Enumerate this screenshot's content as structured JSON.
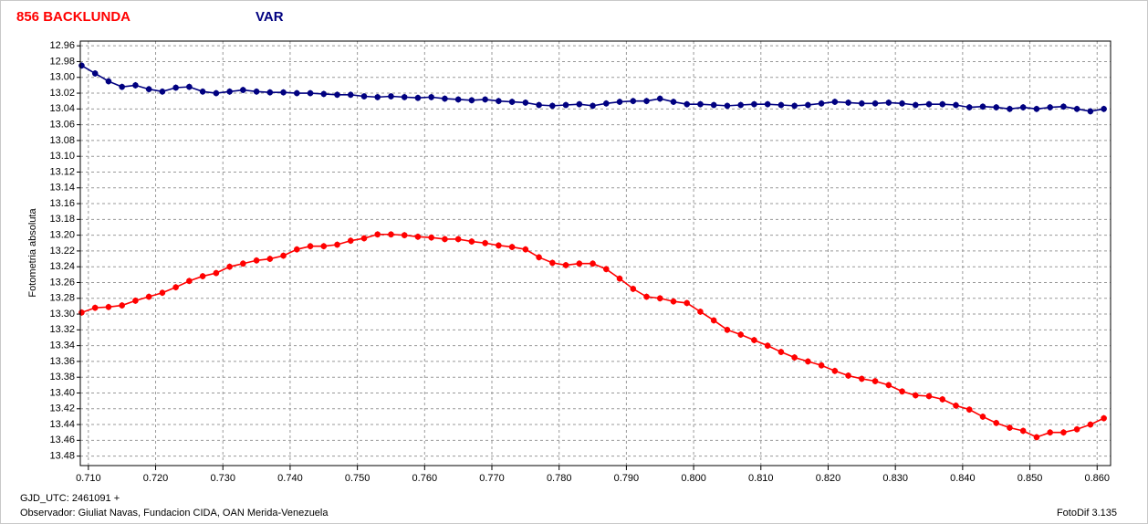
{
  "chart_data": {
    "type": "line",
    "y_label": "Fotometria absoluta",
    "footer_left": [
      "GJD_UTC: 2461091 +",
      "Observador: Giuliat Navas, Fundacion CIDA, OAN  Merida-Venezuela"
    ],
    "footer_right": "FotoDif 3.135",
    "x": [
      0.709,
      0.711,
      0.713,
      0.715,
      0.717,
      0.719,
      0.721,
      0.723,
      0.725,
      0.727,
      0.729,
      0.731,
      0.733,
      0.735,
      0.737,
      0.739,
      0.741,
      0.743,
      0.745,
      0.747,
      0.749,
      0.751,
      0.753,
      0.755,
      0.757,
      0.759,
      0.761,
      0.763,
      0.765,
      0.767,
      0.769,
      0.771,
      0.773,
      0.775,
      0.777,
      0.779,
      0.781,
      0.783,
      0.785,
      0.787,
      0.789,
      0.791,
      0.793,
      0.795,
      0.797,
      0.799,
      0.801,
      0.803,
      0.805,
      0.807,
      0.809,
      0.811,
      0.813,
      0.815,
      0.817,
      0.819,
      0.821,
      0.823,
      0.825,
      0.827,
      0.829,
      0.831,
      0.833,
      0.835,
      0.837,
      0.839,
      0.841,
      0.843,
      0.845,
      0.847,
      0.849,
      0.851,
      0.853,
      0.855,
      0.857,
      0.859,
      0.861
    ],
    "series": [
      {
        "name": "856 BACKLUNDA",
        "color": "#ff0000",
        "error": 0.004,
        "values": [
          13.298,
          13.292,
          13.291,
          13.289,
          13.283,
          13.278,
          13.273,
          13.266,
          13.258,
          13.252,
          13.248,
          13.24,
          13.236,
          13.232,
          13.23,
          13.226,
          13.218,
          13.214,
          13.214,
          13.212,
          13.207,
          13.204,
          13.199,
          13.199,
          13.2,
          13.202,
          13.203,
          13.205,
          13.205,
          13.208,
          13.21,
          13.213,
          13.215,
          13.218,
          13.228,
          13.235,
          13.238,
          13.236,
          13.236,
          13.243,
          13.255,
          13.268,
          13.278,
          13.28,
          13.284,
          13.286,
          13.297,
          13.308,
          13.32,
          13.326,
          13.333,
          13.34,
          13.348,
          13.355,
          13.36,
          13.365,
          13.372,
          13.378,
          13.382,
          13.385,
          13.39,
          13.398,
          13.403,
          13.404,
          13.408,
          13.416,
          13.421,
          13.43,
          13.438,
          13.444,
          13.448,
          13.456,
          13.45,
          13.45,
          13.446,
          13.44,
          13.432
        ]
      },
      {
        "name": "VAR",
        "color": "#000080",
        "error": 0.004,
        "values": [
          12.985,
          12.995,
          13.005,
          13.012,
          13.01,
          13.015,
          13.018,
          13.013,
          13.012,
          13.018,
          13.02,
          13.018,
          13.016,
          13.018,
          13.019,
          13.019,
          13.02,
          13.02,
          13.021,
          13.022,
          13.022,
          13.024,
          13.025,
          13.024,
          13.025,
          13.026,
          13.025,
          13.027,
          13.028,
          13.029,
          13.028,
          13.03,
          13.031,
          13.032,
          13.035,
          13.036,
          13.035,
          13.034,
          13.036,
          13.033,
          13.031,
          13.03,
          13.03,
          13.027,
          13.031,
          13.034,
          13.034,
          13.035,
          13.036,
          13.035,
          13.034,
          13.034,
          13.035,
          13.036,
          13.035,
          13.033,
          13.031,
          13.032,
          13.033,
          13.033,
          13.032,
          13.033,
          13.035,
          13.034,
          13.034,
          13.035,
          13.038,
          13.037,
          13.038,
          13.04,
          13.038,
          13.04,
          13.038,
          13.037,
          13.04,
          13.043,
          13.04
        ]
      }
    ],
    "xlim": [
      0.7088,
      0.862
    ],
    "ylim": [
      12.954,
      13.492
    ],
    "y_inverted": true,
    "grid": true,
    "xticks": [
      {
        "value": 0.71,
        "label": "0.710"
      },
      {
        "value": 0.72,
        "label": "0.720"
      },
      {
        "value": 0.73,
        "label": "0.730"
      },
      {
        "value": 0.74,
        "label": "0.740"
      },
      {
        "value": 0.75,
        "label": "0.750"
      },
      {
        "value": 0.76,
        "label": "0.760"
      },
      {
        "value": 0.77,
        "label": "0.770"
      },
      {
        "value": 0.78,
        "label": "0.780"
      },
      {
        "value": 0.79,
        "label": "0.790"
      },
      {
        "value": 0.8,
        "label": "0.800"
      },
      {
        "value": 0.81,
        "label": "0.810"
      },
      {
        "value": 0.82,
        "label": "0.820"
      },
      {
        "value": 0.83,
        "label": "0.830"
      },
      {
        "value": 0.84,
        "label": "0.840"
      },
      {
        "value": 0.85,
        "label": "0.850"
      },
      {
        "value": 0.86,
        "label": "0.860"
      }
    ],
    "yticks": [
      12.96,
      12.98,
      {
        "value": 13,
        "label": "13.00"
      },
      13.02,
      13.04,
      13.06,
      13.08,
      {
        "value": 13.1,
        "label": "13.10"
      },
      13.12,
      13.14,
      13.16,
      13.18,
      {
        "value": 13.2,
        "label": "13.20"
      },
      13.22,
      13.24,
      13.26,
      13.28,
      {
        "value": 13.3,
        "label": "13.30"
      },
      13.32,
      13.34,
      13.36,
      13.38,
      {
        "value": 13.4,
        "label": "13.40"
      },
      13.42,
      13.44,
      13.46,
      13.48
    ]
  }
}
